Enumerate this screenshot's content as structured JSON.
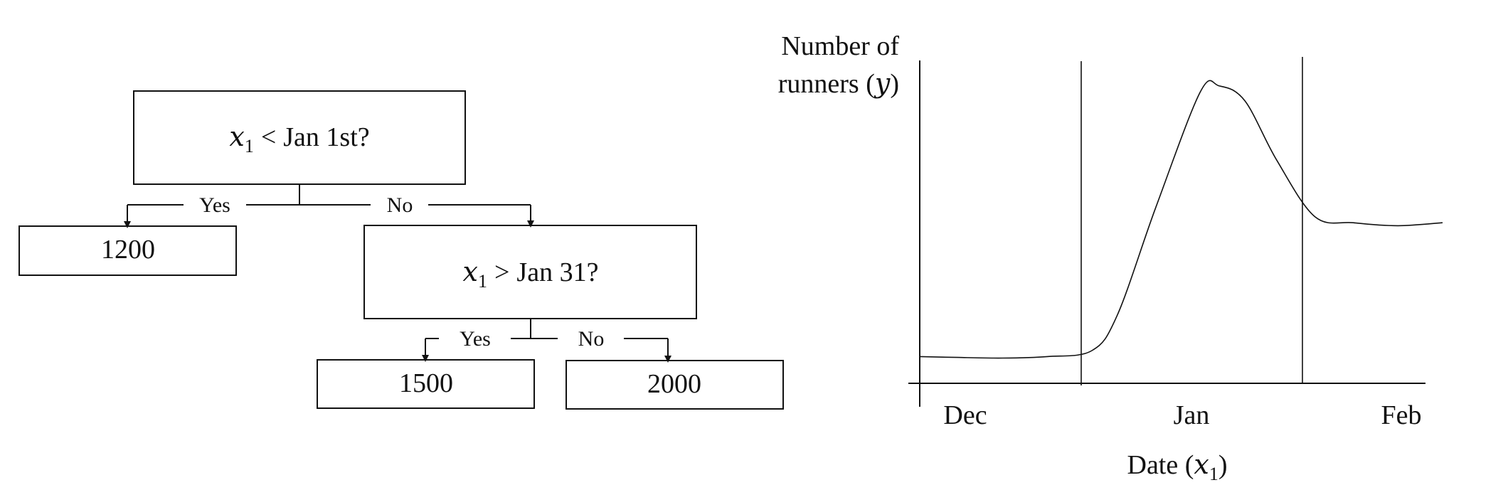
{
  "tree": {
    "root": {
      "var": "x",
      "sub": "1",
      "op": "<",
      "rest": "Jan 1st?"
    },
    "leaf_left": "1200",
    "yes_label_1": "Yes",
    "no_label_1": "No",
    "node2": {
      "var": "x",
      "sub": "1",
      "op": ">",
      "rest": "Jan 31?"
    },
    "yes_label_2": "Yes",
    "no_label_2": "No",
    "leaf_mid": "1500",
    "leaf_right": "2000"
  },
  "chart_data": {
    "type": "line",
    "ylabel_line1": "Number of",
    "ylabel_line2_text": "runners (",
    "ylabel_var": "y",
    "ylabel_close": ")",
    "xlabel_text": "Date (",
    "xlabel_var": "x",
    "xlabel_sub": "1",
    "xlabel_close": ")",
    "x_ticks": [
      "Dec",
      "Jan",
      "Feb"
    ],
    "series": [
      {
        "x": [
          "Dec 1",
          "Dec 7",
          "Dec 14",
          "Dec 21",
          "Dec 28",
          "Jan 1",
          "Jan 7",
          "Jan 14",
          "Jan 17",
          "Jan 21",
          "Jan 26",
          "Feb 1",
          "Feb 7",
          "Feb 14",
          "Feb 21"
        ],
        "y": [
          9,
          8.7,
          8.5,
          9,
          11,
          23,
          59,
          98,
          100,
          95,
          75,
          56,
          54,
          53,
          54
        ]
      }
    ],
    "ylim": [
      0,
      105
    ],
    "split_lines": [
      "Jan 1",
      "Feb 1"
    ],
    "grid": false
  },
  "colors": {
    "ink": "#111111",
    "background": "#ffffff"
  }
}
